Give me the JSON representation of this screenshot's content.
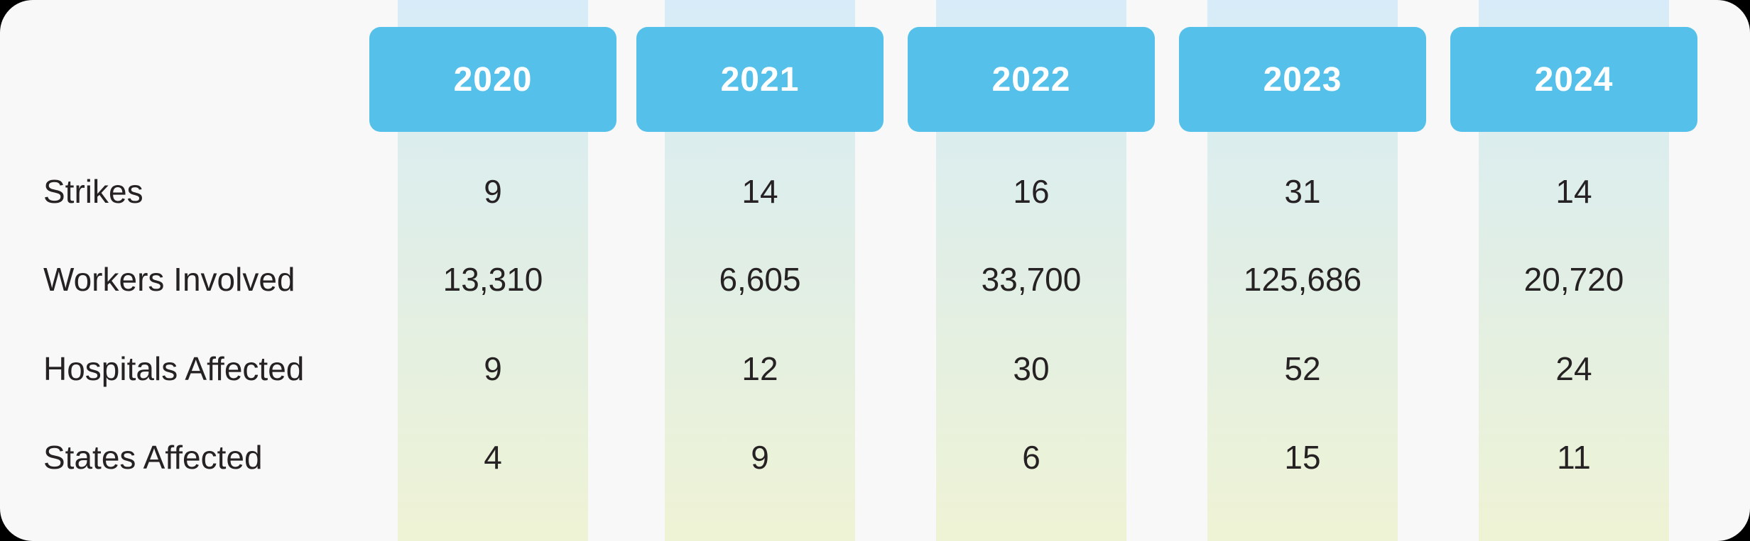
{
  "table": {
    "columns": [
      "2020",
      "2021",
      "2022",
      "2023",
      "2024"
    ],
    "rows": [
      {
        "label": "Strikes",
        "values": [
          "9",
          "14",
          "16",
          "31",
          "14"
        ]
      },
      {
        "label": "Workers Involved",
        "values": [
          "13,310",
          "6,605",
          "33,700",
          "125,686",
          "20,720"
        ]
      },
      {
        "label": "Hospitals Affected",
        "values": [
          "9",
          "12",
          "30",
          "52",
          "24"
        ]
      },
      {
        "label": "States Affected",
        "values": [
          "4",
          "9",
          "6",
          "15",
          "11"
        ]
      }
    ]
  },
  "chart_data": {
    "type": "table",
    "title": "",
    "categories": [
      "2020",
      "2021",
      "2022",
      "2023",
      "2024"
    ],
    "series": [
      {
        "name": "Strikes",
        "values": [
          9,
          14,
          16,
          31,
          14
        ]
      },
      {
        "name": "Workers Involved",
        "values": [
          13310,
          6605,
          33700,
          125686,
          20720
        ]
      },
      {
        "name": "Hospitals Affected",
        "values": [
          9,
          12,
          30,
          52,
          24
        ]
      },
      {
        "name": "States Affected",
        "values": [
          4,
          9,
          6,
          15,
          11
        ]
      }
    ],
    "legend_position": "none",
    "grid": false
  },
  "colors": {
    "page_background": "#000000",
    "card_background": "#f8f8f8",
    "header_button": "#55c1ea",
    "header_text": "#ffffff",
    "body_text": "#262223",
    "band_gradient_top": "#d7ecf8",
    "band_gradient_middle": "#e0eee7",
    "band_gradient_bottom": "#eff3d5"
  }
}
